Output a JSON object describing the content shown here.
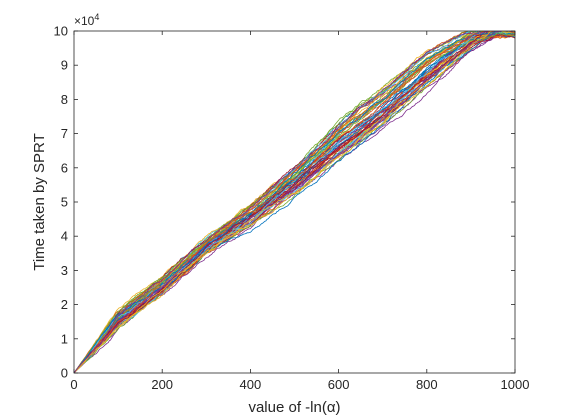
{
  "chart_data": {
    "type": "line",
    "title": "",
    "xlabel": "value of -ln(α)",
    "ylabel": "Time taken by  SPRT",
    "xlim": [
      0,
      1000
    ],
    "ylim": [
      0,
      10
    ],
    "x_ticks": [
      "0",
      "200",
      "400",
      "600",
      "800",
      "1000"
    ],
    "y_ticks": [
      "0",
      "1",
      "2",
      "3",
      "4",
      "5",
      "6",
      "7",
      "8",
      "9",
      "10"
    ],
    "y_multiplier": {
      "base": "×10",
      "exponent": "4"
    },
    "grid": false,
    "legend": "none",
    "series_count": 60,
    "line_width": 0.8,
    "colors": [
      "#0072BD",
      "#D95319",
      "#EDB120",
      "#7E2F8E",
      "#77AC30",
      "#4DBEEE",
      "#A2142F"
    ],
    "series_envelope": {
      "x": [
        0,
        100,
        200,
        300,
        400,
        500,
        600,
        700,
        800,
        900,
        960
      ],
      "y_low": [
        0,
        1.3,
        2.3,
        3.5,
        4.3,
        5.2,
        6.2,
        7.2,
        8.3,
        9.5,
        10
      ],
      "y_high": [
        0,
        1.8,
        2.8,
        3.9,
        4.9,
        6.0,
        7.3,
        8.3,
        9.4,
        10,
        10
      ]
    }
  }
}
